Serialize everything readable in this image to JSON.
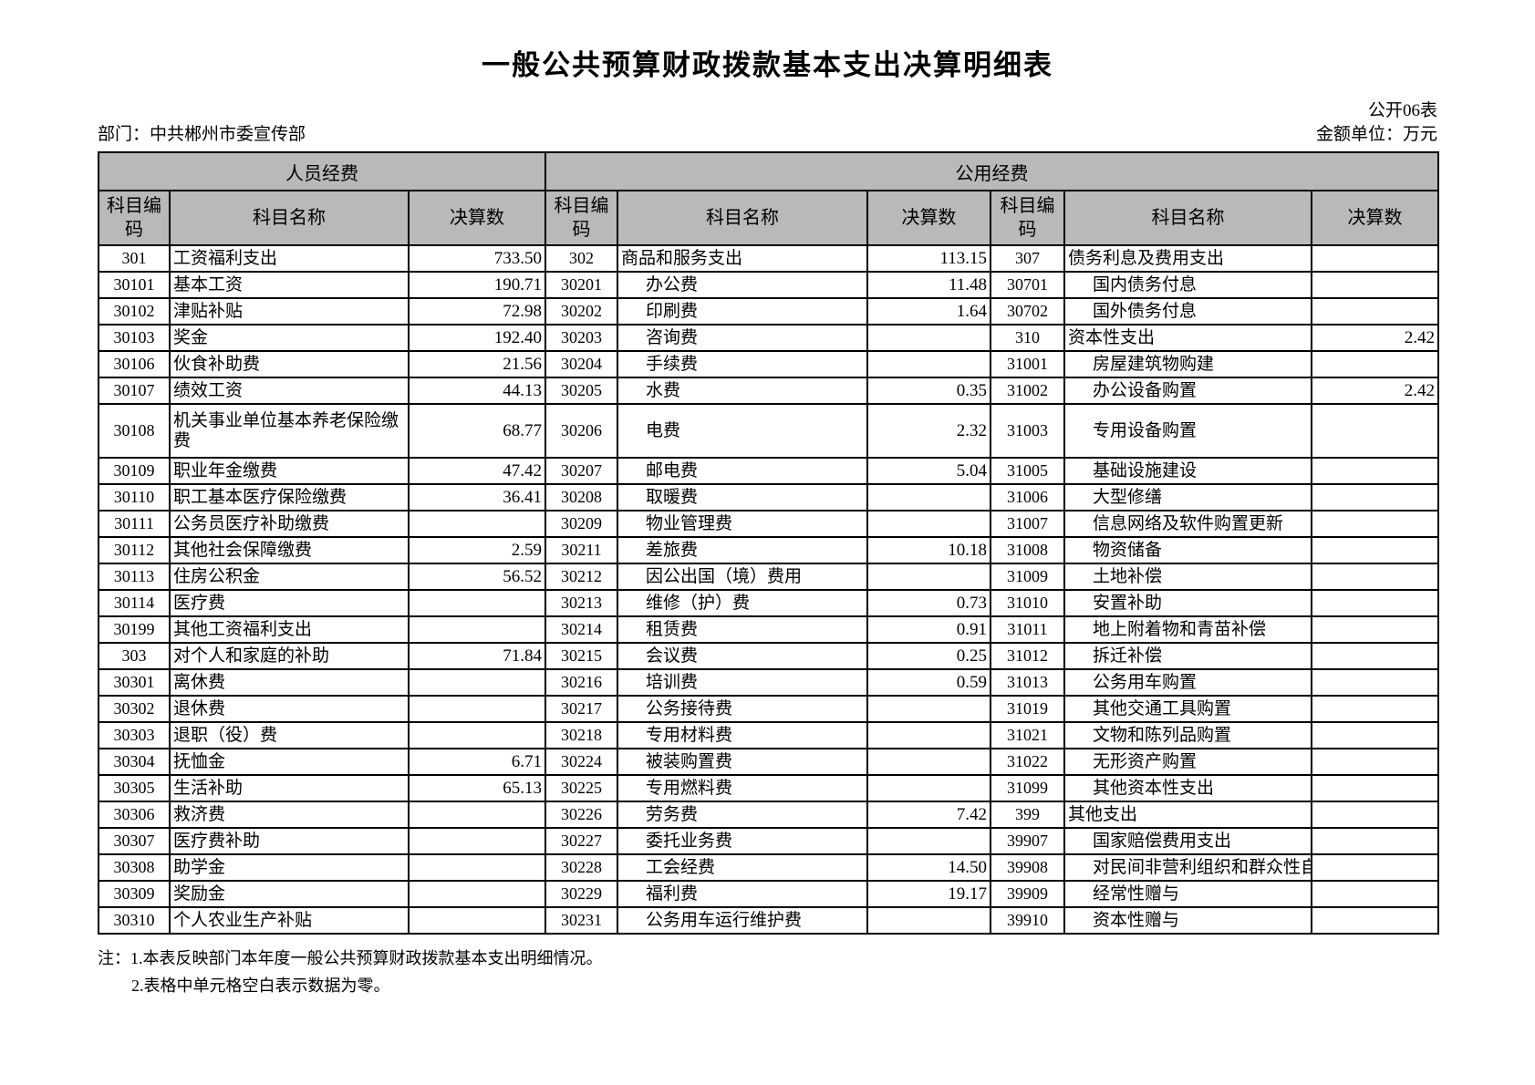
{
  "title": "一般公共预算财政拨款基本支出决算明细表",
  "form_code": "公开06表",
  "department": "部门：中共郴州市委宣传部",
  "unit": "金额单位：万元",
  "colors": {
    "header_bg": "#b9b9b9",
    "border": "#000000"
  },
  "table": {
    "group_headers": [
      "人员经费",
      "公用经费"
    ],
    "column_headers": [
      "科目编码",
      "科目名称",
      "决算数"
    ],
    "rows": [
      {
        "tall": false,
        "cells": [
          {
            "code": "301",
            "name": "工资福利支出",
            "value": "733.50",
            "indent": false
          },
          {
            "code": "302",
            "name": "商品和服务支出",
            "value": "113.15",
            "indent": false
          },
          {
            "code": "307",
            "name": "债务利息及费用支出",
            "value": "",
            "indent": false
          }
        ]
      },
      {
        "tall": false,
        "cells": [
          {
            "code": "30101",
            "name": "基本工资",
            "value": "190.71",
            "indent": false
          },
          {
            "code": "30201",
            "name": "办公费",
            "value": "11.48",
            "indent": true
          },
          {
            "code": "30701",
            "name": "国内债务付息",
            "value": "",
            "indent": true
          }
        ]
      },
      {
        "tall": false,
        "cells": [
          {
            "code": "30102",
            "name": "津贴补贴",
            "value": "72.98",
            "indent": false
          },
          {
            "code": "30202",
            "name": "印刷费",
            "value": "1.64",
            "indent": true
          },
          {
            "code": "30702",
            "name": "国外债务付息",
            "value": "",
            "indent": true
          }
        ]
      },
      {
        "tall": false,
        "cells": [
          {
            "code": "30103",
            "name": "奖金",
            "value": "192.40",
            "indent": false
          },
          {
            "code": "30203",
            "name": "咨询费",
            "value": "",
            "indent": true
          },
          {
            "code": "310",
            "name": "资本性支出",
            "value": "2.42",
            "indent": false
          }
        ]
      },
      {
        "tall": false,
        "cells": [
          {
            "code": "30106",
            "name": "伙食补助费",
            "value": "21.56",
            "indent": false
          },
          {
            "code": "30204",
            "name": "手续费",
            "value": "",
            "indent": true
          },
          {
            "code": "31001",
            "name": "房屋建筑物购建",
            "value": "",
            "indent": true
          }
        ]
      },
      {
        "tall": false,
        "cells": [
          {
            "code": "30107",
            "name": "绩效工资",
            "value": "44.13",
            "indent": false
          },
          {
            "code": "30205",
            "name": "水费",
            "value": "0.35",
            "indent": true
          },
          {
            "code": "31002",
            "name": "办公设备购置",
            "value": "2.42",
            "indent": true
          }
        ]
      },
      {
        "tall": true,
        "cells": [
          {
            "code": "30108",
            "name": "机关事业单位基本养老保险缴费",
            "value": "68.77",
            "indent": false
          },
          {
            "code": "30206",
            "name": "电费",
            "value": "2.32",
            "indent": true
          },
          {
            "code": "31003",
            "name": "专用设备购置",
            "value": "",
            "indent": true
          }
        ]
      },
      {
        "tall": false,
        "cells": [
          {
            "code": "30109",
            "name": "职业年金缴费",
            "value": "47.42",
            "indent": false
          },
          {
            "code": "30207",
            "name": "邮电费",
            "value": "5.04",
            "indent": true
          },
          {
            "code": "31005",
            "name": "基础设施建设",
            "value": "",
            "indent": true
          }
        ]
      },
      {
        "tall": false,
        "cells": [
          {
            "code": "30110",
            "name": "职工基本医疗保险缴费",
            "value": "36.41",
            "indent": false
          },
          {
            "code": "30208",
            "name": "取暖费",
            "value": "",
            "indent": true
          },
          {
            "code": "31006",
            "name": "大型修缮",
            "value": "",
            "indent": true
          }
        ]
      },
      {
        "tall": false,
        "cells": [
          {
            "code": "30111",
            "name": "公务员医疗补助缴费",
            "value": "",
            "indent": false
          },
          {
            "code": "30209",
            "name": "物业管理费",
            "value": "",
            "indent": true
          },
          {
            "code": "31007",
            "name": "信息网络及软件购置更新",
            "value": "",
            "indent": true
          }
        ]
      },
      {
        "tall": false,
        "cells": [
          {
            "code": "30112",
            "name": "其他社会保障缴费",
            "value": "2.59",
            "indent": false
          },
          {
            "code": "30211",
            "name": "差旅费",
            "value": "10.18",
            "indent": true
          },
          {
            "code": "31008",
            "name": "物资储备",
            "value": "",
            "indent": true
          }
        ]
      },
      {
        "tall": false,
        "cells": [
          {
            "code": "30113",
            "name": "住房公积金",
            "value": "56.52",
            "indent": false
          },
          {
            "code": "30212",
            "name": "因公出国（境）费用",
            "value": "",
            "indent": true
          },
          {
            "code": "31009",
            "name": "土地补偿",
            "value": "",
            "indent": true
          }
        ]
      },
      {
        "tall": false,
        "cells": [
          {
            "code": "30114",
            "name": "医疗费",
            "value": "",
            "indent": false
          },
          {
            "code": "30213",
            "name": "维修（护）费",
            "value": "0.73",
            "indent": true
          },
          {
            "code": "31010",
            "name": "安置补助",
            "value": "",
            "indent": true
          }
        ]
      },
      {
        "tall": false,
        "cells": [
          {
            "code": "30199",
            "name": "其他工资福利支出",
            "value": "",
            "indent": false
          },
          {
            "code": "30214",
            "name": "租赁费",
            "value": "0.91",
            "indent": true
          },
          {
            "code": "31011",
            "name": "地上附着物和青苗补偿",
            "value": "",
            "indent": true
          }
        ]
      },
      {
        "tall": false,
        "cells": [
          {
            "code": "303",
            "name": "对个人和家庭的补助",
            "value": "71.84",
            "indent": false
          },
          {
            "code": "30215",
            "name": "会议费",
            "value": "0.25",
            "indent": true
          },
          {
            "code": "31012",
            "name": "拆迁补偿",
            "value": "",
            "indent": true
          }
        ]
      },
      {
        "tall": false,
        "cells": [
          {
            "code": "30301",
            "name": "离休费",
            "value": "",
            "indent": false
          },
          {
            "code": "30216",
            "name": "培训费",
            "value": "0.59",
            "indent": true
          },
          {
            "code": "31013",
            "name": "公务用车购置",
            "value": "",
            "indent": true
          }
        ]
      },
      {
        "tall": false,
        "cells": [
          {
            "code": "30302",
            "name": "退休费",
            "value": "",
            "indent": false
          },
          {
            "code": "30217",
            "name": "公务接待费",
            "value": "",
            "indent": true
          },
          {
            "code": "31019",
            "name": "其他交通工具购置",
            "value": "",
            "indent": true
          }
        ]
      },
      {
        "tall": false,
        "cells": [
          {
            "code": "30303",
            "name": "退职（役）费",
            "value": "",
            "indent": false
          },
          {
            "code": "30218",
            "name": "专用材料费",
            "value": "",
            "indent": true
          },
          {
            "code": "31021",
            "name": "文物和陈列品购置",
            "value": "",
            "indent": true
          }
        ]
      },
      {
        "tall": false,
        "cells": [
          {
            "code": "30304",
            "name": "抚恤金",
            "value": "6.71",
            "indent": false
          },
          {
            "code": "30224",
            "name": "被装购置费",
            "value": "",
            "indent": true
          },
          {
            "code": "31022",
            "name": "无形资产购置",
            "value": "",
            "indent": true
          }
        ]
      },
      {
        "tall": false,
        "cells": [
          {
            "code": "30305",
            "name": "生活补助",
            "value": "65.13",
            "indent": false
          },
          {
            "code": "30225",
            "name": "专用燃料费",
            "value": "",
            "indent": true
          },
          {
            "code": "31099",
            "name": "其他资本性支出",
            "value": "",
            "indent": true
          }
        ]
      },
      {
        "tall": false,
        "cells": [
          {
            "code": "30306",
            "name": "救济费",
            "value": "",
            "indent": false
          },
          {
            "code": "30226",
            "name": "劳务费",
            "value": "7.42",
            "indent": true
          },
          {
            "code": "399",
            "name": "其他支出",
            "value": "",
            "indent": false
          }
        ]
      },
      {
        "tall": false,
        "cells": [
          {
            "code": "30307",
            "name": "医疗费补助",
            "value": "",
            "indent": false
          },
          {
            "code": "30227",
            "name": "委托业务费",
            "value": "",
            "indent": true
          },
          {
            "code": "39907",
            "name": "国家赔偿费用支出",
            "value": "",
            "indent": true
          }
        ]
      },
      {
        "tall": false,
        "cells": [
          {
            "code": "30308",
            "name": "助学金",
            "value": "",
            "indent": false
          },
          {
            "code": "30228",
            "name": "工会经费",
            "value": "14.50",
            "indent": true
          },
          {
            "code": "39908",
            "name": "对民间非营利组织和群众性自",
            "value": "",
            "indent": true
          }
        ]
      },
      {
        "tall": false,
        "cells": [
          {
            "code": "30309",
            "name": "奖励金",
            "value": "",
            "indent": false
          },
          {
            "code": "30229",
            "name": "福利费",
            "value": "19.17",
            "indent": true
          },
          {
            "code": "39909",
            "name": "经常性赠与",
            "value": "",
            "indent": true
          }
        ]
      },
      {
        "tall": false,
        "cells": [
          {
            "code": "30310",
            "name": "个人农业生产补贴",
            "value": "",
            "indent": false
          },
          {
            "code": "30231",
            "name": "公务用车运行维护费",
            "value": "",
            "indent": true
          },
          {
            "code": "39910",
            "name": "资本性赠与",
            "value": "",
            "indent": true
          }
        ]
      }
    ]
  },
  "notes": [
    "注：1.本表反映部门本年度一般公共预算财政拨款基本支出明细情况。",
    "2.表格中单元格空白表示数据为零。"
  ]
}
